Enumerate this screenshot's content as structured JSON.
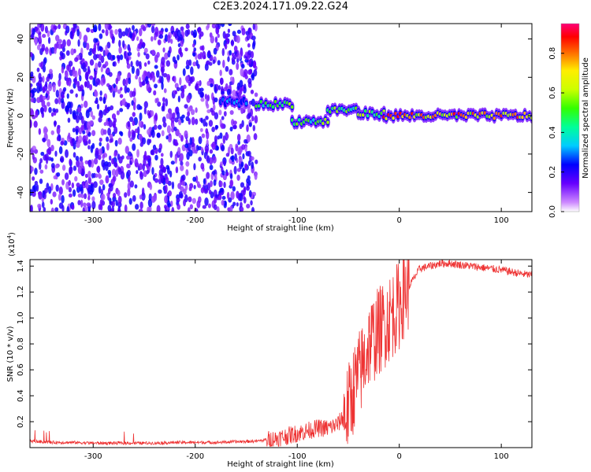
{
  "figure": {
    "title": "C2E3.2024.171.09.22.G24"
  },
  "chart_data": [
    {
      "type": "heatmap",
      "name": "spectrogram",
      "xlabel": "Height of straight line (km)",
      "ylabel": "Frequency (Hz)",
      "xlim": [
        -362,
        130
      ],
      "ylim": [
        -50,
        48
      ],
      "xticks": [
        -300,
        -200,
        -100,
        0,
        100
      ],
      "yticks": [
        -40,
        -20,
        0,
        20,
        40
      ],
      "xtick_labels": [
        "-300",
        "-200",
        "-100",
        "0",
        "100"
      ],
      "ytick_labels": [
        "-40",
        "-20",
        "0",
        "20",
        "40"
      ],
      "colorbar": {
        "label": "Normalized spectral amplitude",
        "range": [
          0.0,
          0.95
        ],
        "ticks": [
          0.0,
          0.2,
          0.4,
          0.6,
          0.8
        ],
        "tick_labels": [
          "0.0",
          "0.2",
          "0.4",
          "0.6",
          "0.8"
        ],
        "colormap": "rainbow"
      },
      "features": [
        {
          "x_range": [
            -362,
            -140
          ],
          "freq_range": [
            -50,
            48
          ],
          "amplitude": 0.15,
          "description": "broadband noise"
        },
        {
          "x_range": [
            -175,
            -150
          ],
          "freq_center": 7,
          "amplitude": 0.3
        },
        {
          "x_range": [
            -140,
            -105
          ],
          "freq_center": 6,
          "amplitude": 0.5
        },
        {
          "x_range": [
            -105,
            -70
          ],
          "freq_center": -3,
          "amplitude": 0.5
        },
        {
          "x_range": [
            -70,
            -40
          ],
          "freq_center": 3,
          "amplitude": 0.5
        },
        {
          "x_range": [
            -40,
            -15
          ],
          "freq_center": 1,
          "amplitude": 0.55
        },
        {
          "x_range": [
            -15,
            130
          ],
          "freq_center": 0,
          "amplitude": 0.75
        }
      ]
    },
    {
      "type": "line",
      "name": "snr",
      "xlabel": "Height of straight line (km)",
      "ylabel": "SNR (10 * v/v)",
      "y_multiplier": "(x10",
      "y_multiplier_exp": "4",
      "y_multiplier_close": ")",
      "xlim": [
        -362,
        130
      ],
      "ylim": [
        0.0,
        1.45
      ],
      "xticks": [
        -300,
        -200,
        -100,
        0,
        100
      ],
      "yticks": [
        0.2,
        0.4,
        0.6,
        0.8,
        1.0,
        1.2,
        1.4
      ],
      "xtick_labels": [
        "-300",
        "-200",
        "-100",
        "0",
        "100"
      ],
      "ytick_labels": [
        "0.2",
        "0.4",
        "0.6",
        "0.8",
        "1.0",
        "1.2",
        "1.4"
      ],
      "color": "#ee3333",
      "series": [
        {
          "x": [
            -360,
            -340,
            -320,
            -300,
            -280,
            -260,
            -240,
            -220,
            -200,
            -180,
            -160,
            -140,
            -120,
            -110,
            -100,
            -90,
            -80,
            -70,
            -60,
            -50,
            -45,
            -40,
            -35,
            -30,
            -25,
            -20,
            -15,
            -10,
            -5,
            0,
            5,
            10,
            20,
            30,
            40,
            50,
            60,
            80,
            100,
            120,
            130
          ],
          "y": [
            0.05,
            0.04,
            0.04,
            0.035,
            0.035,
            0.035,
            0.035,
            0.04,
            0.04,
            0.04,
            0.045,
            0.05,
            0.07,
            0.09,
            0.11,
            0.13,
            0.15,
            0.15,
            0.18,
            0.3,
            0.45,
            0.55,
            0.65,
            0.8,
            0.85,
            0.9,
            0.95,
            1.0,
            1.05,
            1.1,
            1.2,
            1.25,
            1.38,
            1.4,
            1.42,
            1.42,
            1.41,
            1.39,
            1.37,
            1.34,
            1.33
          ]
        }
      ]
    }
  ]
}
